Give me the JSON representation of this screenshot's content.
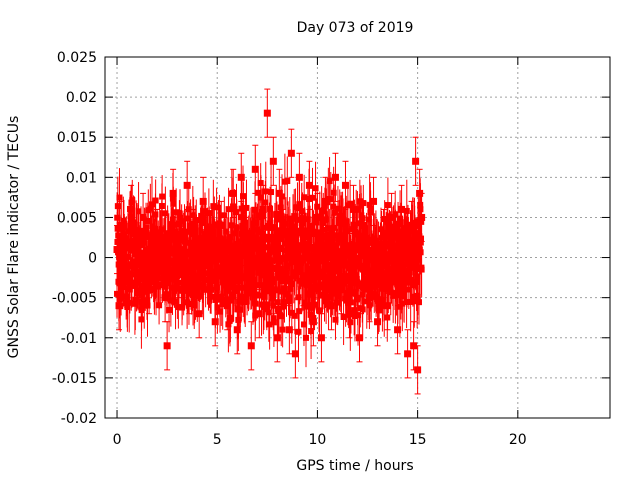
{
  "chart_data": {
    "type": "scatter",
    "title": "Day 073 of 2019",
    "xlabel": "GPS time / hours",
    "ylabel": "GNSS Solar Flare indicator / TECUs",
    "xlim": [
      -0.6,
      24.6
    ],
    "ylim": [
      -0.02,
      0.025
    ],
    "xticks": [
      0,
      5,
      10,
      15,
      20
    ],
    "xtick_labels": [
      "0",
      "5",
      "10",
      "15",
      "20"
    ],
    "yticks": [
      -0.02,
      -0.015,
      -0.01,
      -0.005,
      0,
      0.005,
      0.01,
      0.015,
      0.02,
      0.025
    ],
    "ytick_labels": [
      "-0.02",
      "-0.015",
      "-0.01",
      "-0.005",
      "0",
      "0.005",
      "0.01",
      "0.015",
      "0.02",
      "0.025"
    ],
    "grid": true,
    "legend": "none",
    "series_color": "#ff0000",
    "marker": "filled-square-with-errorbars",
    "data_extent": {
      "x_range_hours": [
        0.0,
        15.2
      ],
      "typical_y_spread": [
        -0.008,
        0.008
      ],
      "typical_error_bar": 0.003
    },
    "series": [
      {
        "x": [
          0.0,
          0.1,
          0.2,
          0.4,
          0.7,
          1.0,
          1.3,
          1.6,
          2.0,
          2.4,
          2.5,
          2.8,
          3.1,
          3.5,
          3.6,
          3.8,
          4.1,
          4.3,
          4.6,
          4.9,
          5.2,
          5.5,
          5.8,
          6.0,
          6.2,
          6.4,
          6.7,
          6.9,
          7.1,
          7.3,
          7.5,
          7.6,
          7.8,
          8.0,
          8.1,
          8.3,
          8.6,
          8.7,
          8.9,
          9.1,
          9.3,
          9.6,
          9.8,
          10.0,
          10.2,
          10.4,
          10.7,
          10.9,
          11.2,
          11.4,
          11.6,
          11.8,
          12.1,
          12.3,
          12.6,
          12.8,
          13.0,
          13.3,
          13.5,
          13.7,
          14.0,
          14.2,
          14.5,
          14.7,
          14.8,
          14.9,
          15.0,
          15.1,
          15.2
        ],
        "y": [
          0.001,
          -0.006,
          0.004,
          -0.003,
          0.006,
          -0.002,
          0.005,
          -0.004,
          0.003,
          -0.005,
          -0.011,
          0.008,
          -0.002,
          0.009,
          -0.004,
          0.003,
          -0.007,
          0.007,
          -0.001,
          -0.008,
          0.004,
          -0.006,
          0.008,
          -0.009,
          0.01,
          0.002,
          -0.011,
          0.011,
          -0.007,
          0.006,
          0.018,
          -0.004,
          0.012,
          -0.01,
          0.008,
          0.003,
          -0.009,
          0.013,
          -0.012,
          0.01,
          -0.003,
          0.009,
          -0.008,
          0.005,
          -0.01,
          0.007,
          -0.006,
          0.01,
          -0.004,
          0.009,
          -0.007,
          0.006,
          -0.01,
          0.004,
          -0.005,
          0.007,
          -0.008,
          0.003,
          -0.006,
          0.005,
          -0.009,
          0.006,
          -0.012,
          0.004,
          -0.011,
          0.012,
          -0.014,
          0.008,
          0.005
        ],
        "err": [
          0.003,
          0.003,
          0.003,
          0.003,
          0.003,
          0.003,
          0.003,
          0.003,
          0.003,
          0.003,
          0.003,
          0.003,
          0.003,
          0.003,
          0.003,
          0.003,
          0.003,
          0.003,
          0.003,
          0.003,
          0.003,
          0.003,
          0.003,
          0.003,
          0.003,
          0.003,
          0.003,
          0.003,
          0.003,
          0.003,
          0.003,
          0.003,
          0.003,
          0.003,
          0.003,
          0.003,
          0.003,
          0.003,
          0.003,
          0.003,
          0.003,
          0.003,
          0.003,
          0.003,
          0.003,
          0.003,
          0.003,
          0.003,
          0.003,
          0.003,
          0.003,
          0.003,
          0.003,
          0.003,
          0.003,
          0.003,
          0.003,
          0.003,
          0.003,
          0.003,
          0.003,
          0.003,
          0.003,
          0.003,
          0.003,
          0.003,
          0.003,
          0.003,
          0.003
        ]
      }
    ]
  }
}
